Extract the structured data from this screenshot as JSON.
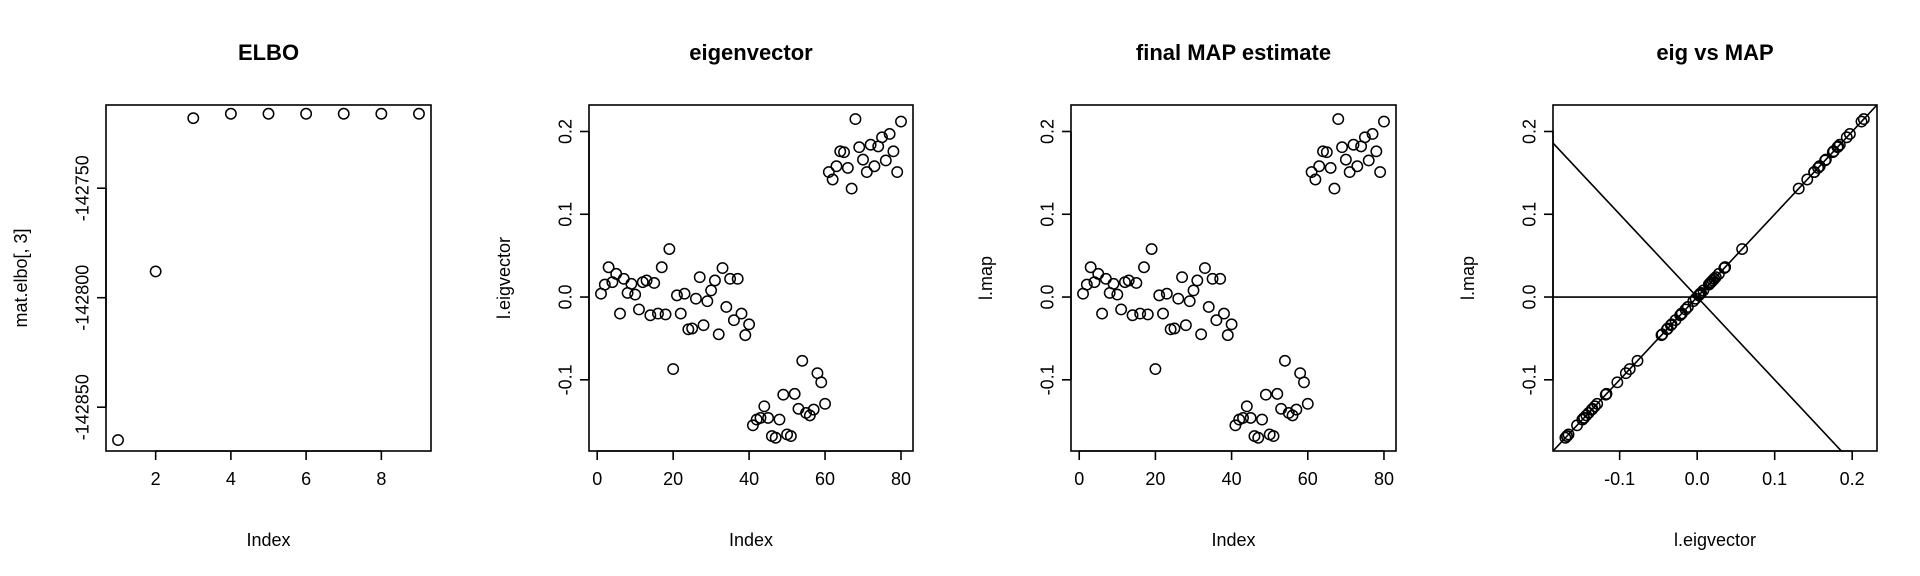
{
  "chart_data": [
    {
      "type": "scatter",
      "title": "ELBO",
      "xlabel": "Index",
      "ylabel": "mat.elbo[, 3]",
      "xlim": [
        0.68,
        9.32
      ],
      "ylim": [
        -142870,
        -142712
      ],
      "xticks": [
        2,
        4,
        6,
        8
      ],
      "yticks": [
        -142850,
        -142800,
        -142750
      ],
      "xtick_labels": [
        "2",
        "4",
        "6",
        "8"
      ],
      "ytick_labels": [
        "-142850",
        "-142800",
        "-142750"
      ],
      "x": [
        1,
        2,
        3,
        4,
        5,
        6,
        7,
        8,
        9
      ],
      "y": [
        -142865,
        -142788,
        -142718,
        -142716,
        -142716,
        -142716,
        -142716,
        -142716,
        -142716
      ]
    },
    {
      "type": "scatter",
      "title": "eigenvector",
      "xlabel": "Index",
      "ylabel": "l.eigvector",
      "xlim": [
        -2.16,
        83.16
      ],
      "ylim": [
        -0.186,
        0.232
      ],
      "xticks": [
        0,
        20,
        40,
        60,
        80
      ],
      "yticks": [
        -0.1,
        0.0,
        0.1,
        0.2
      ],
      "xtick_labels": [
        "0",
        "20",
        "40",
        "60",
        "80"
      ],
      "ytick_labels": [
        "-0.1",
        "0.0",
        "0.1",
        "0.2"
      ],
      "y": [
        0.004,
        0.015,
        0.036,
        0.018,
        0.028,
        -0.02,
        0.022,
        0.005,
        0.016,
        0.003,
        -0.015,
        0.018,
        0.02,
        -0.022,
        0.017,
        -0.02,
        0.036,
        -0.021,
        0.058,
        -0.087,
        0.002,
        -0.02,
        0.004,
        -0.039,
        -0.038,
        -0.002,
        0.024,
        -0.034,
        -0.005,
        0.008,
        0.02,
        -0.045,
        0.035,
        -0.012,
        0.022,
        -0.028,
        0.022,
        -0.02,
        -0.046,
        -0.033,
        -0.155,
        -0.148,
        -0.146,
        -0.132,
        -0.146,
        -0.168,
        -0.17,
        -0.148,
        -0.118,
        -0.166,
        -0.168,
        -0.117,
        -0.135,
        -0.077,
        -0.14,
        -0.143,
        -0.136,
        -0.092,
        -0.103,
        -0.129,
        0.151,
        0.142,
        0.158,
        0.176,
        0.175,
        0.156,
        0.131,
        0.215,
        0.181,
        0.166,
        0.151,
        0.184,
        0.158,
        0.182,
        0.193,
        0.165,
        0.197,
        0.176,
        0.151,
        0.212
      ]
    },
    {
      "type": "scatter",
      "title": "final MAP estimate",
      "xlabel": "Index",
      "ylabel": "l.map",
      "xlim": [
        -2.16,
        83.16
      ],
      "ylim": [
        -0.186,
        0.232
      ],
      "xticks": [
        0,
        20,
        40,
        60,
        80
      ],
      "yticks": [
        -0.1,
        0.0,
        0.1,
        0.2
      ],
      "xtick_labels": [
        "0",
        "20",
        "40",
        "60",
        "80"
      ],
      "ytick_labels": [
        "-0.1",
        "0.0",
        "0.1",
        "0.2"
      ],
      "y": [
        0.004,
        0.015,
        0.036,
        0.018,
        0.028,
        -0.02,
        0.022,
        0.005,
        0.016,
        0.003,
        -0.015,
        0.018,
        0.02,
        -0.022,
        0.017,
        -0.02,
        0.036,
        -0.021,
        0.058,
        -0.087,
        0.002,
        -0.02,
        0.004,
        -0.039,
        -0.038,
        -0.002,
        0.024,
        -0.034,
        -0.005,
        0.008,
        0.02,
        -0.045,
        0.035,
        -0.012,
        0.022,
        -0.028,
        0.022,
        -0.02,
        -0.046,
        -0.033,
        -0.155,
        -0.148,
        -0.146,
        -0.132,
        -0.146,
        -0.168,
        -0.17,
        -0.148,
        -0.118,
        -0.166,
        -0.168,
        -0.117,
        -0.135,
        -0.077,
        -0.14,
        -0.143,
        -0.136,
        -0.092,
        -0.103,
        -0.129,
        0.151,
        0.142,
        0.158,
        0.176,
        0.175,
        0.156,
        0.131,
        0.215,
        0.181,
        0.166,
        0.151,
        0.184,
        0.158,
        0.182,
        0.193,
        0.165,
        0.197,
        0.176,
        0.151,
        0.212
      ]
    },
    {
      "type": "scatter",
      "title": "eig vs MAP",
      "xlabel": "l.eigvector",
      "ylabel": "l.map",
      "xlim": [
        -0.186,
        0.232
      ],
      "ylim": [
        -0.186,
        0.232
      ],
      "xticks": [
        -0.1,
        0.0,
        0.1,
        0.2
      ],
      "yticks": [
        -0.1,
        0.0,
        0.1,
        0.2
      ],
      "xtick_labels": [
        "-0.1",
        "0.0",
        "0.1",
        "0.2"
      ],
      "ytick_labels": [
        "-0.1",
        "0.0",
        "0.1",
        "0.2"
      ],
      "x": [
        0.004,
        0.015,
        0.036,
        0.018,
        0.028,
        -0.02,
        0.022,
        0.005,
        0.016,
        0.003,
        -0.015,
        0.018,
        0.02,
        -0.022,
        0.017,
        -0.02,
        0.036,
        -0.021,
        0.058,
        -0.087,
        0.002,
        -0.02,
        0.004,
        -0.039,
        -0.038,
        -0.002,
        0.024,
        -0.034,
        -0.005,
        0.008,
        0.02,
        -0.045,
        0.035,
        -0.012,
        0.022,
        -0.028,
        0.022,
        -0.02,
        -0.046,
        -0.033,
        -0.155,
        -0.148,
        -0.146,
        -0.132,
        -0.146,
        -0.168,
        -0.17,
        -0.148,
        -0.118,
        -0.166,
        -0.168,
        -0.117,
        -0.135,
        -0.077,
        -0.14,
        -0.143,
        -0.136,
        -0.092,
        -0.103,
        -0.129,
        0.151,
        0.142,
        0.158,
        0.176,
        0.175,
        0.156,
        0.131,
        0.215,
        0.181,
        0.166,
        0.151,
        0.184,
        0.158,
        0.182,
        0.193,
        0.165,
        0.197,
        0.176,
        0.151,
        0.212
      ],
      "y_equals_x": true,
      "reference_lines": [
        {
          "type": "abline",
          "intercept": 0,
          "slope": 1
        },
        {
          "type": "abline",
          "intercept": 0,
          "slope": -1
        },
        {
          "type": "hline",
          "y": 0
        }
      ]
    }
  ]
}
